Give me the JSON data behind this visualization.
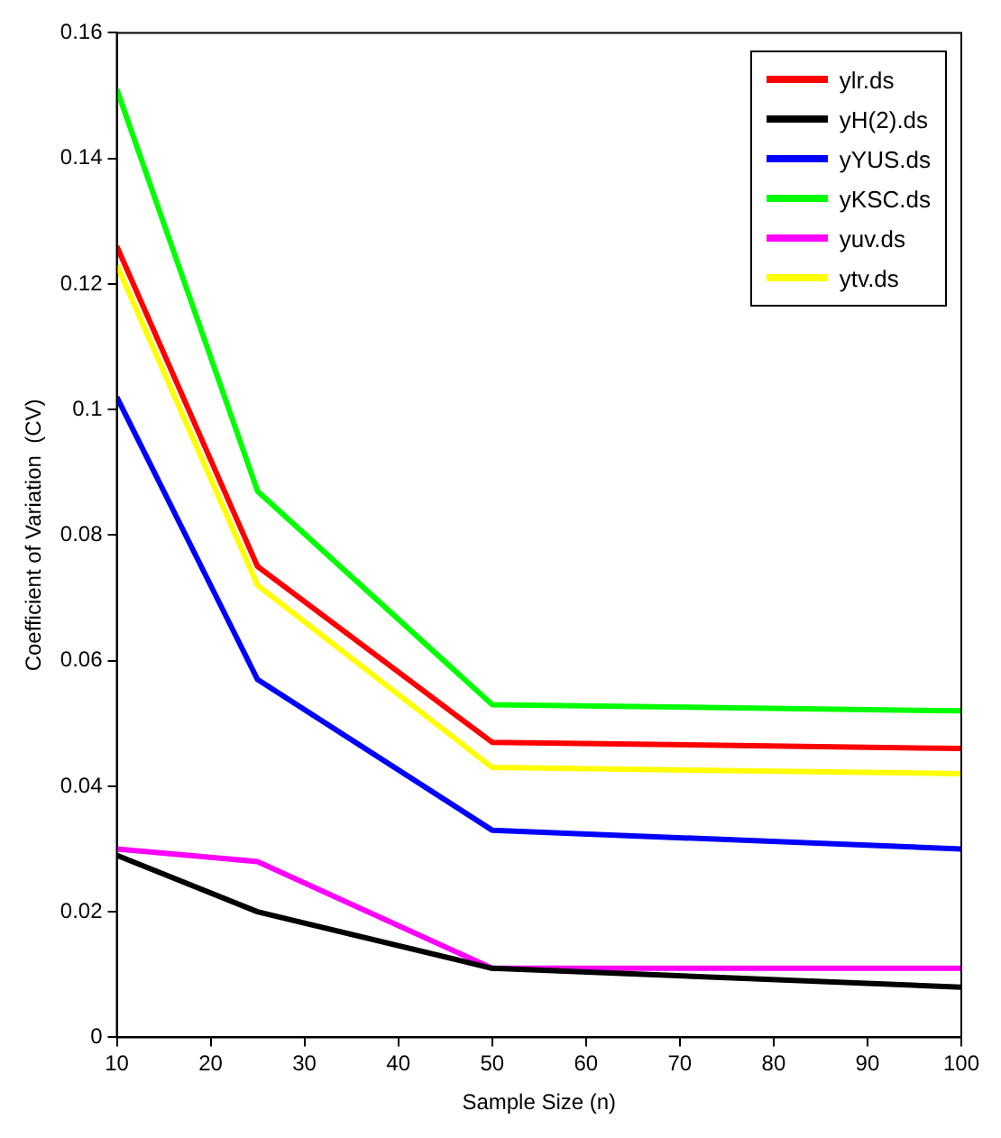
{
  "chart_data": {
    "type": "line",
    "xlabel": "Sample Size (n)",
    "ylabel": "Coefficient of Variation  (CV)",
    "x": [
      10,
      25,
      50,
      100
    ],
    "series": [
      {
        "name": "ylr.ds",
        "color": "#ff0000",
        "values": [
          0.126,
          0.075,
          0.047,
          0.046
        ]
      },
      {
        "name": "yH(2).ds",
        "color": "#000000",
        "values": [
          0.029,
          0.02,
          0.011,
          0.008
        ]
      },
      {
        "name": "yYUS.ds",
        "color": "#0000ff",
        "values": [
          0.102,
          0.057,
          0.033,
          0.03
        ]
      },
      {
        "name": "yKSC.ds",
        "color": "#00ff00",
        "values": [
          0.151,
          0.087,
          0.053,
          0.052
        ]
      },
      {
        "name": "yuv.ds",
        "color": "#ff00ff",
        "values": [
          0.03,
          0.028,
          0.011,
          0.011
        ]
      },
      {
        "name": "ytv.ds",
        "color": "#ffff00",
        "values": [
          0.123,
          0.072,
          0.043,
          0.042
        ]
      }
    ],
    "xlim": [
      10,
      100
    ],
    "xticks": [
      10,
      20,
      30,
      40,
      50,
      60,
      70,
      80,
      90,
      100
    ],
    "ylim": [
      0,
      0.16
    ],
    "yticks": [
      0,
      0.02,
      0.04,
      0.06,
      0.08,
      0.1,
      0.12,
      0.14,
      0.16
    ],
    "legend": "top right",
    "marker": "none",
    "line_style": "solid",
    "grid": false
  }
}
